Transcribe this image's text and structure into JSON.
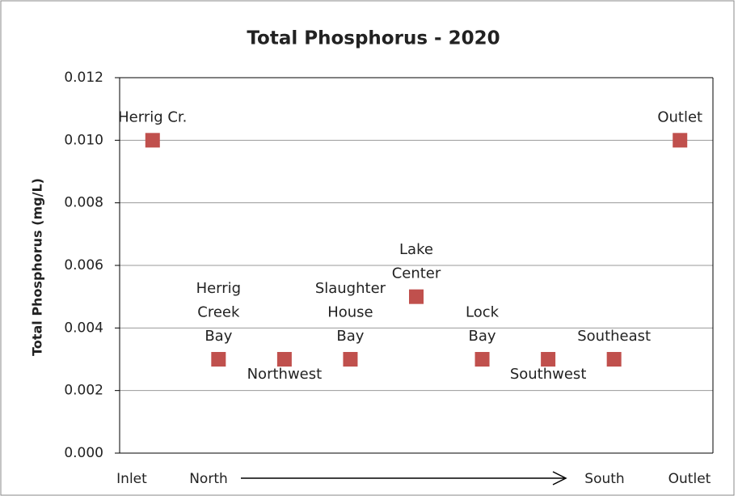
{
  "chart_data": {
    "type": "scatter",
    "title": "Total Phosphorus - 2020",
    "y_label": "Total Phosphorus (mg/L)",
    "categories": [
      [
        "Herrig Cr."
      ],
      [
        "Herrig",
        "Creek",
        "Bay"
      ],
      [
        "Northwest"
      ],
      [
        "Slaughter",
        "House",
        "Bay"
      ],
      [
        "Lake",
        "Center"
      ],
      [
        "Lock",
        "Bay"
      ],
      [
        "Southwest"
      ],
      [
        "Southeast"
      ],
      [
        "Outlet"
      ]
    ],
    "values": [
      0.01,
      0.003,
      0.003,
      0.003,
      0.005,
      0.003,
      0.003,
      0.003,
      0.01
    ],
    "color": "#c0504d",
    "ylim": [
      0,
      0.012
    ],
    "yticks": [
      {
        "value": 0,
        "label": "0.000"
      },
      0.002,
      0.004,
      0.006,
      0.008,
      {
        "value": 0.01,
        "label": "0.010"
      },
      0.012
    ],
    "grid": true,
    "x_annotations": [
      "Inlet",
      "North",
      "South",
      "Outlet"
    ]
  }
}
